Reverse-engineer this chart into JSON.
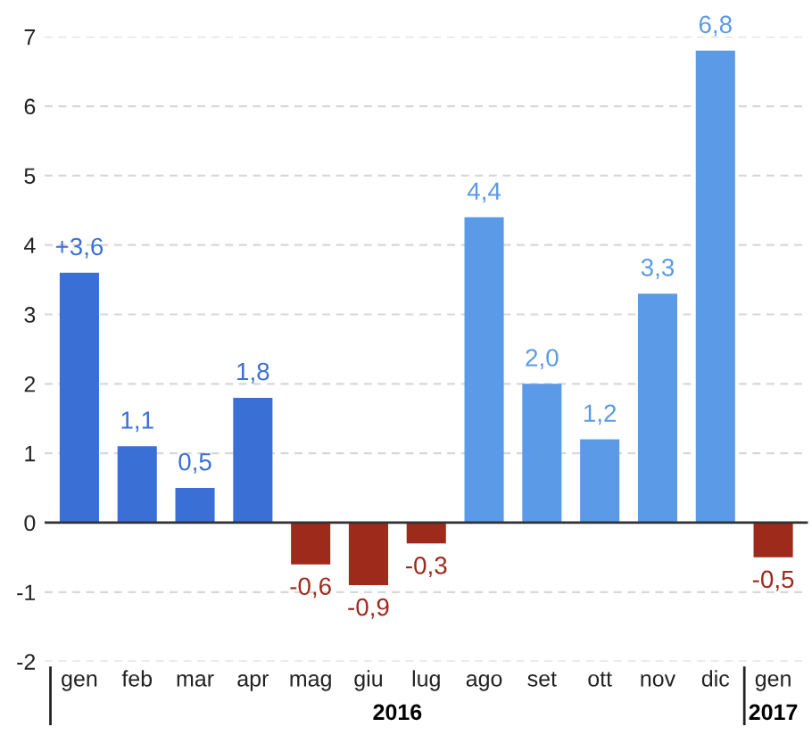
{
  "chart_data": {
    "type": "bar",
    "categories": [
      "gen",
      "feb",
      "mar",
      "apr",
      "mag",
      "giu",
      "lug",
      "ago",
      "set",
      "ott",
      "nov",
      "dic",
      "gen"
    ],
    "values": [
      3.6,
      1.1,
      0.5,
      1.8,
      -0.6,
      -0.9,
      -0.3,
      4.4,
      2.0,
      1.2,
      3.3,
      6.8,
      -0.5
    ],
    "colors": [
      "#3a6fd6",
      "#3a6fd6",
      "#3a6fd6",
      "#3a6fd6",
      "#9e2a1c",
      "#9e2a1c",
      "#9e2a1c",
      "#5a9ae6",
      "#5a9ae6",
      "#5a9ae6",
      "#5a9ae6",
      "#5a9ae6",
      "#9e2a1c"
    ],
    "value_labels": [
      "+3,6",
      "1,1",
      "0,5",
      "1,8",
      "-0,6",
      "-0,9",
      "-0,3",
      "4,4",
      "2,0",
      "1,2",
      "3,3",
      "6,8",
      "-0,5"
    ],
    "ylim": [
      -2,
      7
    ],
    "yticks": [
      -2,
      -1,
      0,
      1,
      2,
      3,
      4,
      5,
      6,
      7
    ],
    "grid": "y",
    "ref_lines": [
      {
        "axis": "y",
        "value": 0,
        "color": "#333333"
      }
    ],
    "annotations": [
      "2016",
      "2017"
    ]
  }
}
